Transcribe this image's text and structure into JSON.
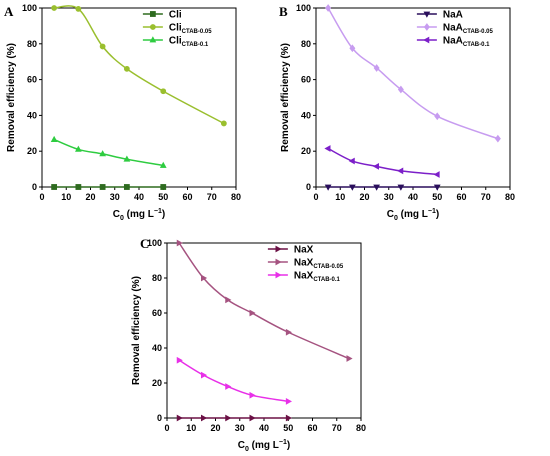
{
  "chart_data": [
    {
      "type": "line",
      "panel_label": "A",
      "xlabel": "C",
      "xlabel_sub": "0",
      "xlabel_units": " (mg L",
      "xlabel_sup": "−1",
      "xlabel_close": ")",
      "ylabel": "Removal efficiency (%)",
      "xlim": [
        0,
        80
      ],
      "ylim": [
        0,
        100
      ],
      "xticks": [
        0,
        10,
        20,
        30,
        40,
        50,
        60,
        70,
        80
      ],
      "yticks": [
        0,
        20,
        40,
        60,
        80,
        100
      ],
      "legend_position": "top-right",
      "series": [
        {
          "name": "Cli",
          "name_sub": "",
          "color": "#2e6b1f",
          "marker": "square",
          "x": [
            5,
            15,
            25,
            35,
            50
          ],
          "y": [
            0,
            0,
            0,
            0,
            0
          ]
        },
        {
          "name": "Cli",
          "name_sub": "CTAB-0.05",
          "color": "#9abf2e",
          "marker": "circle",
          "x": [
            5,
            15,
            25,
            35,
            50,
            75
          ],
          "y": [
            100,
            99.5,
            78.5,
            66,
            53.5,
            35.5
          ]
        },
        {
          "name": "Cli",
          "name_sub": "CTAB-0.1",
          "color": "#2ecc40",
          "marker": "triangle-up",
          "x": [
            5,
            15,
            25,
            35,
            50
          ],
          "y": [
            26.5,
            21,
            18.5,
            15.5,
            12
          ]
        }
      ]
    },
    {
      "type": "line",
      "panel_label": "B",
      "xlabel": "C",
      "xlabel_sub": "0",
      "xlabel_units": " (mg L",
      "xlabel_sup": "−1",
      "xlabel_close": ")",
      "ylabel": "Removal efficiency (%)",
      "xlim": [
        0,
        80
      ],
      "ylim": [
        0,
        100
      ],
      "xticks": [
        0,
        10,
        20,
        30,
        40,
        50,
        60,
        70,
        80
      ],
      "yticks": [
        0,
        20,
        40,
        60,
        80,
        100
      ],
      "legend_position": "top-right",
      "series": [
        {
          "name": "NaA",
          "name_sub": "",
          "color": "#2a0f5c",
          "marker": "triangle-down",
          "x": [
            5,
            15,
            25,
            35,
            50
          ],
          "y": [
            0,
            0,
            0,
            0,
            0
          ]
        },
        {
          "name": "NaA",
          "name_sub": "CTAB-0.05",
          "color": "#c79cf0",
          "marker": "diamond",
          "x": [
            5,
            15,
            25,
            35,
            50,
            75
          ],
          "y": [
            100,
            77.5,
            66.5,
            54.5,
            39.5,
            27
          ]
        },
        {
          "name": "NaA",
          "name_sub": "CTAB-0.1",
          "color": "#7c1fc9",
          "marker": "triangle-left",
          "x": [
            5,
            15,
            25,
            35,
            50
          ],
          "y": [
            21.5,
            14.5,
            11.5,
            9,
            7
          ]
        }
      ]
    },
    {
      "type": "line",
      "panel_label": "C",
      "xlabel": "C",
      "xlabel_sub": "0",
      "xlabel_units": " (mg L",
      "xlabel_sup": "−1",
      "xlabel_close": ")",
      "ylabel": "Removal efficiency (%)",
      "xlim": [
        0,
        80
      ],
      "ylim": [
        0,
        100
      ],
      "xticks": [
        0,
        10,
        20,
        30,
        40,
        50,
        60,
        70,
        80
      ],
      "yticks": [
        0,
        20,
        40,
        60,
        80,
        100
      ],
      "legend_position": "top-right",
      "series": [
        {
          "name": "NaX",
          "name_sub": "",
          "color": "#6b1045",
          "marker": "triangle-right",
          "x": [
            5,
            15,
            25,
            35,
            50
          ],
          "y": [
            0,
            0,
            0,
            0,
            0
          ]
        },
        {
          "name": "NaX",
          "name_sub": "CTAB-0.05",
          "color": "#a55380",
          "marker": "triangle-right",
          "x": [
            5,
            15,
            25,
            35,
            50,
            75
          ],
          "y": [
            100,
            80,
            67.5,
            60,
            49,
            34
          ]
        },
        {
          "name": "NaX",
          "name_sub": "CTAB-0.1",
          "color": "#e830e8",
          "marker": "triangle-right",
          "x": [
            5,
            15,
            25,
            35,
            50
          ],
          "y": [
            33,
            24.5,
            18,
            13,
            9.5
          ]
        }
      ]
    }
  ]
}
